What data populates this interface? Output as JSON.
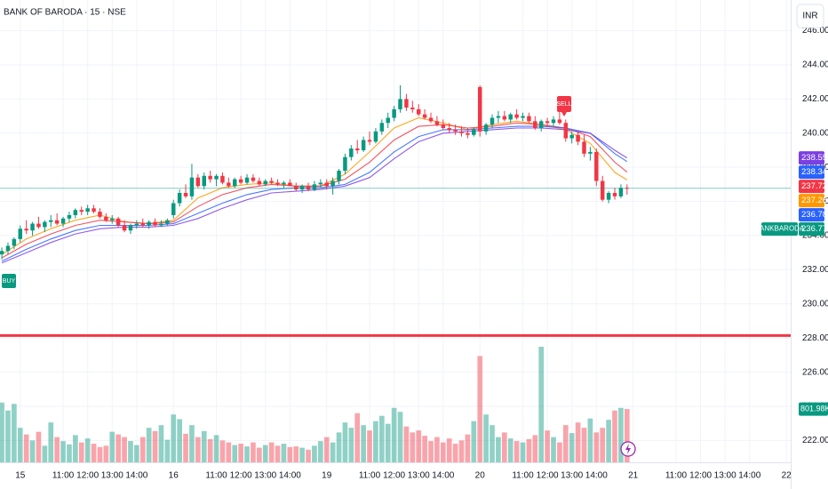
{
  "chart_data": {
    "type": "candlestick",
    "title": "BANK OF BARODA · 15 · NSE",
    "currency": "INR",
    "symbol": "BANKBARODA",
    "ohlc": [
      [
        232.9,
        233.3,
        232.6,
        233.1
      ],
      [
        233.1,
        233.6,
        232.9,
        233.4
      ],
      [
        233.4,
        233.9,
        233.2,
        233.8
      ],
      [
        233.8,
        234.6,
        233.6,
        234.4
      ],
      [
        234.4,
        234.9,
        234.1,
        234.3
      ],
      [
        234.3,
        234.8,
        234.0,
        234.7
      ],
      [
        234.7,
        235.1,
        234.4,
        234.5
      ],
      [
        234.5,
        234.9,
        234.2,
        234.8
      ],
      [
        234.8,
        235.2,
        234.5,
        234.9
      ],
      [
        234.9,
        235.3,
        234.6,
        234.7
      ],
      [
        234.7,
        235.1,
        234.5,
        235.0
      ],
      [
        235.0,
        235.4,
        234.8,
        235.2
      ],
      [
        235.2,
        235.6,
        235.0,
        235.5
      ],
      [
        235.5,
        235.7,
        235.2,
        235.4
      ],
      [
        235.4,
        235.8,
        235.2,
        235.6
      ],
      [
        235.6,
        235.8,
        235.3,
        235.4
      ],
      [
        235.4,
        235.6,
        235.0,
        235.1
      ],
      [
        235.1,
        235.3,
        234.8,
        234.9
      ],
      [
        234.9,
        235.2,
        234.7,
        235.0
      ],
      [
        235.0,
        235.1,
        234.5,
        234.6
      ],
      [
        234.6,
        234.9,
        234.2,
        234.3
      ],
      [
        234.3,
        234.7,
        234.1,
        234.6
      ],
      [
        234.6,
        234.9,
        234.4,
        234.7
      ],
      [
        234.7,
        235.0,
        234.5,
        234.6
      ],
      [
        234.6,
        234.9,
        234.4,
        234.8
      ],
      [
        234.8,
        235.0,
        234.5,
        234.6
      ],
      [
        234.6,
        234.9,
        234.5,
        234.7
      ],
      [
        234.7,
        235.0,
        234.6,
        234.9
      ],
      [
        235.2,
        236.1,
        235.0,
        235.9
      ],
      [
        235.9,
        236.7,
        235.7,
        236.5
      ],
      [
        236.5,
        237.0,
        236.2,
        236.3
      ],
      [
        236.3,
        238.2,
        236.1,
        237.4
      ],
      [
        237.4,
        237.6,
        236.8,
        236.9
      ],
      [
        236.9,
        237.7,
        236.7,
        237.5
      ],
      [
        237.5,
        237.8,
        237.1,
        237.3
      ],
      [
        237.3,
        237.6,
        236.9,
        237.5
      ],
      [
        237.5,
        237.7,
        237.0,
        237.1
      ],
      [
        237.1,
        237.4,
        236.8,
        236.9
      ],
      [
        236.9,
        237.4,
        236.8,
        237.3
      ],
      [
        237.3,
        237.5,
        237.0,
        237.1
      ],
      [
        237.1,
        237.6,
        237.0,
        237.4
      ],
      [
        237.4,
        237.6,
        237.1,
        237.2
      ],
      [
        237.2,
        237.4,
        236.9,
        237.0
      ],
      [
        237.0,
        237.3,
        236.9,
        237.2
      ],
      [
        237.2,
        237.4,
        237.0,
        237.1
      ],
      [
        237.1,
        237.3,
        236.9,
        237.0
      ],
      [
        237.0,
        237.2,
        236.8,
        237.1
      ],
      [
        237.1,
        237.3,
        236.9,
        236.9
      ],
      [
        236.9,
        237.1,
        236.6,
        236.7
      ],
      [
        236.7,
        237.0,
        236.5,
        236.9
      ],
      [
        236.9,
        237.1,
        236.6,
        236.7
      ],
      [
        236.7,
        237.2,
        236.6,
        237.0
      ],
      [
        237.0,
        237.3,
        236.8,
        237.1
      ],
      [
        237.1,
        237.3,
        236.7,
        236.9
      ],
      [
        236.9,
        237.4,
        236.4,
        237.2
      ],
      [
        237.2,
        237.9,
        237.0,
        237.8
      ],
      [
        237.8,
        238.8,
        237.6,
        238.6
      ],
      [
        238.6,
        239.3,
        238.4,
        239.1
      ],
      [
        239.1,
        239.6,
        238.8,
        239.0
      ],
      [
        239.0,
        239.8,
        238.9,
        239.6
      ],
      [
        239.6,
        240.1,
        239.3,
        239.5
      ],
      [
        239.5,
        240.3,
        239.4,
        240.1
      ],
      [
        240.1,
        240.8,
        239.9,
        240.6
      ],
      [
        240.6,
        241.2,
        240.3,
        240.9
      ],
      [
        240.9,
        241.6,
        240.7,
        241.4
      ],
      [
        241.4,
        242.8,
        241.2,
        242.0
      ],
      [
        242.0,
        242.3,
        241.3,
        241.5
      ],
      [
        241.5,
        241.9,
        241.2,
        241.4
      ],
      [
        241.4,
        241.7,
        241.0,
        241.1
      ],
      [
        241.1,
        241.4,
        240.8,
        240.9
      ],
      [
        240.9,
        241.2,
        240.6,
        240.7
      ],
      [
        240.7,
        241.0,
        240.4,
        240.5
      ],
      [
        240.5,
        240.8,
        240.2,
        240.3
      ],
      [
        240.3,
        240.6,
        240.0,
        240.2
      ],
      [
        240.2,
        240.5,
        239.9,
        240.1
      ],
      [
        240.1,
        240.4,
        239.8,
        240.0
      ],
      [
        240.0,
        240.3,
        239.7,
        239.9
      ],
      [
        239.9,
        240.3,
        239.8,
        240.2
      ],
      [
        242.7,
        242.8,
        239.8,
        240.1
      ],
      [
        240.1,
        240.6,
        239.9,
        240.5
      ],
      [
        240.5,
        241.1,
        240.3,
        240.9
      ],
      [
        240.9,
        241.3,
        240.6,
        241.0
      ],
      [
        241.0,
        241.3,
        240.7,
        240.8
      ],
      [
        240.8,
        241.2,
        240.6,
        241.1
      ],
      [
        241.1,
        241.4,
        240.8,
        240.9
      ],
      [
        240.9,
        241.2,
        240.7,
        241.0
      ],
      [
        241.0,
        241.2,
        240.6,
        240.7
      ],
      [
        240.7,
        241.0,
        240.2,
        240.3
      ],
      [
        240.3,
        240.8,
        240.1,
        240.7
      ],
      [
        240.7,
        240.9,
        240.4,
        240.6
      ],
      [
        240.6,
        241.0,
        240.4,
        240.8
      ],
      [
        240.8,
        241.3,
        240.5,
        240.6
      ],
      [
        240.6,
        240.8,
        239.5,
        239.7
      ],
      [
        239.7,
        240.1,
        239.4,
        239.9
      ],
      [
        239.9,
        240.1,
        239.3,
        239.5
      ],
      [
        239.5,
        239.9,
        238.6,
        238.8
      ],
      [
        238.8,
        239.2,
        238.4,
        238.9
      ],
      [
        238.9,
        239.1,
        236.9,
        237.2
      ],
      [
        237.2,
        237.5,
        236.0,
        236.1
      ],
      [
        236.1,
        236.6,
        235.9,
        236.5
      ],
      [
        236.5,
        236.8,
        236.1,
        236.3
      ],
      [
        236.3,
        237.0,
        236.2,
        236.8
      ],
      [
        236.8,
        237.0,
        236.4,
        236.77
      ]
    ],
    "volume": [
      900000,
      780000,
      880000,
      520000,
      420000,
      330000,
      460000,
      250000,
      600000,
      380000,
      320000,
      270000,
      410000,
      300000,
      360000,
      280000,
      230000,
      250000,
      460000,
      420000,
      380000,
      320000,
      260000,
      380000,
      520000,
      470000,
      560000,
      340000,
      720000,
      650000,
      430000,
      560000,
      380000,
      470000,
      350000,
      410000,
      330000,
      300000,
      260000,
      280000,
      240000,
      300000,
      220000,
      260000,
      300000,
      250000,
      280000,
      230000,
      240000,
      220000,
      190000,
      250000,
      320000,
      380000,
      300000,
      450000,
      600000,
      520000,
      740000,
      560000,
      480000,
      620000,
      700000,
      580000,
      820000,
      760000,
      540000,
      450000,
      480000,
      400000,
      320000,
      380000,
      300000,
      360000,
      280000,
      330000,
      420000,
      620000,
      1600000,
      720000,
      560000,
      380000,
      450000,
      360000,
      320000,
      300000,
      350000,
      410000,
      1740000,
      480000,
      380000,
      300000,
      560000,
      440000,
      600000,
      520000,
      660000,
      450000,
      520000,
      640000,
      780000,
      820000,
      801980
    ],
    "volume_label": "801.98K",
    "ma_x": [
      0,
      4,
      8,
      12,
      16,
      20,
      24,
      28,
      32,
      36,
      40,
      44,
      48,
      52,
      56,
      60,
      64,
      68,
      72,
      76,
      80,
      84,
      88,
      92,
      96,
      100,
      102
    ],
    "series": [
      {
        "color": "#ff9800",
        "values": [
          232.9,
          233.8,
          234.4,
          234.9,
          235.2,
          234.8,
          234.7,
          234.9,
          236.2,
          236.8,
          237.0,
          237.1,
          236.9,
          236.9,
          237.6,
          238.9,
          240.3,
          240.9,
          240.6,
          240.2,
          240.5,
          240.7,
          240.5,
          240.2,
          239.4,
          237.7,
          237.26
        ]
      },
      {
        "color": "#f23645",
        "values": [
          232.7,
          233.5,
          234.1,
          234.6,
          234.9,
          234.8,
          234.7,
          234.8,
          235.7,
          236.4,
          236.8,
          237.0,
          236.9,
          236.9,
          237.3,
          238.3,
          239.6,
          240.4,
          240.5,
          240.3,
          240.4,
          240.6,
          240.5,
          240.3,
          239.8,
          238.3,
          237.72
        ]
      },
      {
        "color": "#2962ff",
        "values": [
          232.5,
          233.2,
          233.8,
          234.3,
          234.6,
          234.6,
          234.6,
          234.7,
          235.3,
          235.9,
          236.4,
          236.7,
          236.8,
          236.8,
          237.0,
          237.7,
          238.9,
          239.8,
          240.2,
          240.2,
          240.3,
          240.4,
          240.4,
          240.3,
          240.0,
          238.8,
          238.34
        ]
      },
      {
        "color": "#7b3fe4",
        "values": [
          232.4,
          233.0,
          233.6,
          234.1,
          234.4,
          234.5,
          234.5,
          234.6,
          235.0,
          235.6,
          236.1,
          236.5,
          236.6,
          236.7,
          236.9,
          237.4,
          238.5,
          239.5,
          240.0,
          240.1,
          240.2,
          240.3,
          240.3,
          240.2,
          240.0,
          239.0,
          238.55
        ]
      }
    ],
    "price_tags": [
      {
        "value": 236.78,
        "color": "#2962ff"
      }
    ],
    "hline": {
      "value": 228.15,
      "color": "#f23645"
    },
    "signals": [
      "BUY",
      "SELL"
    ],
    "up_color": "#089981",
    "down_color": "#f23645",
    "ylim": [
      220.72,
      247.8
    ],
    "yticks": [
      {
        "value": 222,
        "label": "222.00"
      },
      {
        "value": 224,
        "label": "224.00"
      },
      {
        "value": 226,
        "label": "226.00"
      },
      {
        "value": 228,
        "label": "228.00"
      },
      {
        "value": 230,
        "label": "230.00"
      },
      {
        "value": 232,
        "label": "232.00"
      },
      {
        "value": 234,
        "label": "234.00"
      },
      {
        "value": 236,
        "label": "236.00"
      },
      {
        "value": 238,
        "label": "238.00"
      },
      {
        "value": 240,
        "label": "240.00"
      },
      {
        "value": 242,
        "label": "242.00"
      },
      {
        "value": 244,
        "label": "244.00"
      },
      {
        "value": 246,
        "label": "246.00"
      }
    ],
    "xlim": [
      -0.3,
      128.7
    ],
    "xticks": [
      {
        "value": 3,
        "label": "15"
      },
      {
        "value": 10,
        "label": "11:00"
      },
      {
        "value": 14,
        "label": "12:00"
      },
      {
        "value": 18,
        "label": "13:00"
      },
      {
        "value": 22,
        "label": "14:00"
      },
      {
        "value": 28,
        "label": "16"
      },
      {
        "value": 35,
        "label": "11:00"
      },
      {
        "value": 39,
        "label": "12:00"
      },
      {
        "value": 43,
        "label": "13:00"
      },
      {
        "value": 47,
        "label": "14:00"
      },
      {
        "value": 53,
        "label": "19"
      },
      {
        "value": 60,
        "label": "11:00"
      },
      {
        "value": 64,
        "label": "12:00"
      },
      {
        "value": 68,
        "label": "13:00"
      },
      {
        "value": 72,
        "label": "14:00"
      },
      {
        "value": 78,
        "label": "20"
      },
      {
        "value": 85,
        "label": "11:00"
      },
      {
        "value": 89,
        "label": "12:00"
      },
      {
        "value": 93,
        "label": "13:00"
      },
      {
        "value": 97,
        "label": "14:00"
      },
      {
        "value": 103,
        "label": "21"
      },
      {
        "value": 110,
        "label": "11:00"
      },
      {
        "value": 114,
        "label": "12:00"
      },
      {
        "value": 118,
        "label": "13:00"
      },
      {
        "value": 122,
        "label": "14:00"
      },
      {
        "value": 128,
        "label": "22"
      }
    ],
    "grid": true
  }
}
